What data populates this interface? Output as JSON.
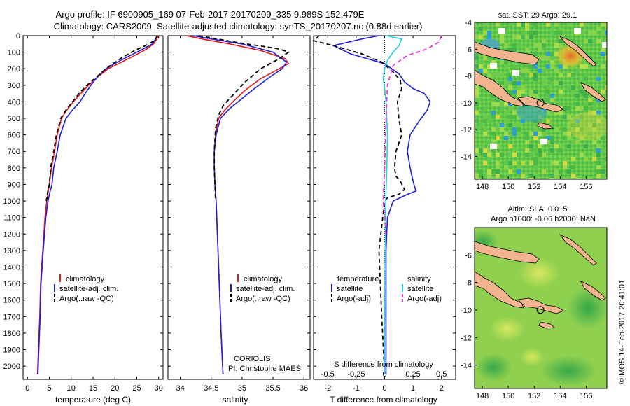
{
  "header": {
    "line1": "Argo profile: IF 6900905_169 07-Feb-2017 20170209_335 9.989S 152.479E",
    "line2": "Climatology: CARS2009. Satellite-adjusted climatology: synTS_20170207.nc (0.88d earlier)"
  },
  "credits": {
    "org": "CORIOLIS",
    "pi": "PI: Christophe MAES",
    "stamp": "©IMOS 14-Feb-2017 20:41:01"
  },
  "colors": {
    "climatology": "#e41a1c",
    "satellite": "#1f1fd6",
    "argo": "#000000",
    "salinity_sat": "#22d3e6",
    "salinity_argo": "#e63ce6",
    "land": "#f2b48f"
  },
  "chart_data": [
    {
      "type": "line",
      "panel": "temperature",
      "xlabel": "temperature (deg C)",
      "xlim": [
        -1,
        31
      ],
      "xticks": [
        0,
        5,
        10,
        15,
        20,
        25,
        30
      ],
      "ylim": [
        0,
        2080
      ],
      "yticks": [
        0,
        100,
        200,
        300,
        400,
        500,
        600,
        700,
        800,
        900,
        1000,
        1100,
        1200,
        1300,
        1400,
        1500,
        1600,
        1700,
        1800,
        1900,
        2000
      ],
      "legend": [
        "climatology",
        "satellite-adj. clim.",
        "Argo(..raw -QC)"
      ],
      "series": [
        {
          "name": "climatology",
          "color": "#e41a1c",
          "style": "solid",
          "x": [
            29.8,
            29.6,
            28.8,
            27.3,
            24.5,
            21.5,
            18.5,
            16.5,
            14.0,
            12.2,
            10.5,
            9.0,
            7.8,
            6.8,
            6.2,
            5.5,
            5.0,
            4.7,
            4.4,
            4.0,
            3.5,
            3.0,
            2.8,
            2.5,
            2.3
          ],
          "y": [
            0,
            20,
            50,
            80,
            120,
            160,
            200,
            240,
            300,
            350,
            400,
            450,
            500,
            600,
            700,
            800,
            900,
            950,
            1000,
            1100,
            1300,
            1500,
            1700,
            1900,
            2050
          ]
        },
        {
          "name": "satellite-adj. clim.",
          "color": "#1f1fd6",
          "style": "solid",
          "x": [
            29.6,
            29.3,
            28.5,
            26.5,
            23.5,
            20.5,
            18.0,
            16.3,
            14.5,
            13.2,
            12.0,
            10.3,
            8.8,
            7.5,
            6.8,
            6.0,
            5.6,
            5.1,
            4.7,
            4.2,
            3.6,
            3.1,
            2.9,
            2.6,
            2.4
          ],
          "y": [
            0,
            20,
            50,
            80,
            120,
            160,
            200,
            240,
            300,
            350,
            400,
            450,
            500,
            600,
            700,
            800,
            900,
            950,
            1000,
            1100,
            1300,
            1500,
            1700,
            1900,
            2050
          ]
        },
        {
          "name": "Argo(..raw -QC)",
          "color": "#000000",
          "style": "dash",
          "x": [
            29.7,
            29.0,
            27.0,
            24.5,
            21.8,
            19.5,
            17.5,
            15.8,
            13.6,
            11.8,
            10.3,
            8.8,
            7.6,
            6.6,
            6.0,
            5.3,
            5.0,
            4.6,
            4.3
          ],
          "y": [
            0,
            30,
            60,
            90,
            130,
            170,
            210,
            250,
            300,
            350,
            400,
            450,
            500,
            600,
            700,
            800,
            900,
            950,
            1000
          ]
        }
      ]
    },
    {
      "type": "line",
      "panel": "salinity",
      "xlabel": "salinity",
      "xlim": [
        33.8,
        36.1
      ],
      "xticks": [
        34,
        34.5,
        35,
        35.5,
        36
      ],
      "ylim": [
        0,
        2080
      ],
      "legend": [
        "climatology",
        "satellite-adj. clim.",
        "Argo(..raw -QC)"
      ],
      "series": [
        {
          "name": "climatology",
          "color": "#e41a1c",
          "style": "solid",
          "x": [
            34.1,
            34.35,
            34.8,
            35.3,
            35.7,
            35.75,
            35.6,
            35.3,
            35.05,
            34.85,
            34.72,
            34.62,
            34.57,
            34.55,
            34.55,
            34.56,
            34.58,
            34.6,
            34.63,
            34.66,
            34.69
          ],
          "y": [
            0,
            20,
            50,
            90,
            140,
            170,
            200,
            260,
            330,
            400,
            450,
            500,
            600,
            700,
            800,
            900,
            1000,
            1200,
            1500,
            1800,
            2050
          ]
        },
        {
          "name": "satellite-adj. clim.",
          "color": "#1f1fd6",
          "style": "solid",
          "x": [
            34.2,
            34.5,
            35.0,
            35.5,
            35.72,
            35.65,
            35.45,
            35.2,
            35.0,
            34.8,
            34.65,
            34.58,
            34.55,
            34.55,
            34.56,
            34.58,
            34.6,
            34.63,
            34.66,
            34.69
          ],
          "y": [
            0,
            20,
            50,
            100,
            160,
            200,
            250,
            320,
            380,
            440,
            500,
            600,
            700,
            800,
            900,
            1000,
            1200,
            1500,
            1800,
            2050
          ]
        },
        {
          "name": "Argo(..raw -QC)",
          "color": "#000000",
          "style": "dash",
          "x": [
            34.3,
            34.9,
            35.6,
            35.75,
            35.6,
            35.3,
            35.05,
            34.85,
            34.7,
            34.62,
            34.57,
            34.55,
            34.55,
            34.56,
            34.57
          ],
          "y": [
            0,
            40,
            80,
            100,
            140,
            200,
            280,
            360,
            420,
            480,
            560,
            700,
            800,
            900,
            1000
          ]
        }
      ]
    },
    {
      "type": "line",
      "panel": "difference",
      "xlabel": "T difference from climatology",
      "top_axis_label": "S difference from climatology",
      "xlim": [
        -2.5,
        2.5
      ],
      "xticks": [
        -2,
        -1,
        0,
        1,
        2
      ],
      "top_xticks_labels": [
        "-0.5",
        "-0.25",
        "0",
        "0.25",
        "0.5"
      ],
      "top_xticks_pos": [
        -2,
        -1,
        0,
        1,
        2
      ],
      "ylim": [
        0,
        2080
      ],
      "legend": [
        "temperature",
        "satellite",
        "Argo(-adj)",
        "salinity",
        "satellite",
        "Argo(-adj)"
      ],
      "series": [
        {
          "name": "satellite",
          "group": "temperature",
          "color": "#1f1fd6",
          "style": "solid",
          "x": [
            -0.2,
            -0.8,
            -1.8,
            -1.2,
            0.0,
            0.5,
            0.7,
            1.0,
            1.4,
            1.6,
            1.5,
            1.2,
            0.9,
            0.8,
            0.9,
            1.0,
            1.1,
            0.8,
            0.3,
            0.1,
            0.05,
            0.05
          ],
          "y": [
            0,
            20,
            60,
            110,
            170,
            230,
            280,
            320,
            350,
            400,
            450,
            520,
            600,
            700,
            800,
            880,
            940,
            960,
            1000,
            1100,
            1300,
            2050
          ]
        },
        {
          "name": "Argo(-adj)",
          "group": "temperature",
          "color": "#000000",
          "style": "dash",
          "x": [
            -2.3,
            -2.5,
            -1.8,
            -0.8,
            -0.1,
            0.3,
            0.55,
            0.6,
            0.45,
            0.5,
            0.6,
            0.4,
            0.35,
            0.4,
            0.55,
            0.7,
            0.5,
            0.1,
            0.0,
            -0.2,
            -0.1,
            0.0
          ],
          "y": [
            0,
            30,
            60,
            110,
            160,
            220,
            270,
            320,
            400,
            500,
            600,
            700,
            800,
            850,
            880,
            930,
            960,
            980,
            1000,
            1300,
            1700,
            2050
          ]
        },
        {
          "name": "satellite",
          "group": "salinity",
          "color": "#22d3e6",
          "style": "solid",
          "x": [
            0.05,
            0.6,
            0.5,
            0.3,
            0.1,
            0.0,
            -0.05,
            0.0,
            0.05,
            0.1,
            0.08,
            0.05,
            0.03,
            0.02,
            0.0,
            0.0
          ],
          "y": [
            0,
            20,
            60,
            100,
            150,
            200,
            260,
            320,
            400,
            600,
            800,
            950,
            1100,
            1400,
            1800,
            2050
          ]
        },
        {
          "name": "Argo(-adj)",
          "group": "salinity",
          "color": "#e63ce6",
          "style": "dash",
          "x": [
            2.0,
            1.9,
            1.5,
            0.8,
            0.3,
            0.1,
            0.05,
            0.0,
            -0.05,
            0.0,
            0.05
          ],
          "y": [
            0,
            40,
            80,
            120,
            180,
            300,
            500,
            800,
            1000,
            1100,
            1200
          ]
        }
      ]
    }
  ],
  "maps": [
    {
      "name": "sst",
      "title": "sat. SST: 29 Argo: 29.1",
      "subtitle": "",
      "xlim": [
        147.4,
        157.6
      ],
      "ylim": [
        -15.7,
        -4
      ],
      "xticks": [
        148,
        150,
        152,
        154,
        156
      ],
      "yticks": [
        -4,
        -6,
        -8,
        -10,
        -12,
        -14
      ],
      "marker": [
        152.48,
        -9.99
      ]
    },
    {
      "name": "sla",
      "title": "Altim. SLA: 0.015",
      "subtitle": "Argo h1000: -0.06 h2000: NaN",
      "xlim": [
        147.4,
        157.6
      ],
      "ylim": [
        -15.7,
        -4
      ],
      "xticks": [
        148,
        150,
        152,
        154,
        156
      ],
      "yticks": [
        -6,
        -8,
        -10,
        -12,
        -14
      ],
      "marker": [
        152.48,
        -9.99
      ]
    }
  ]
}
